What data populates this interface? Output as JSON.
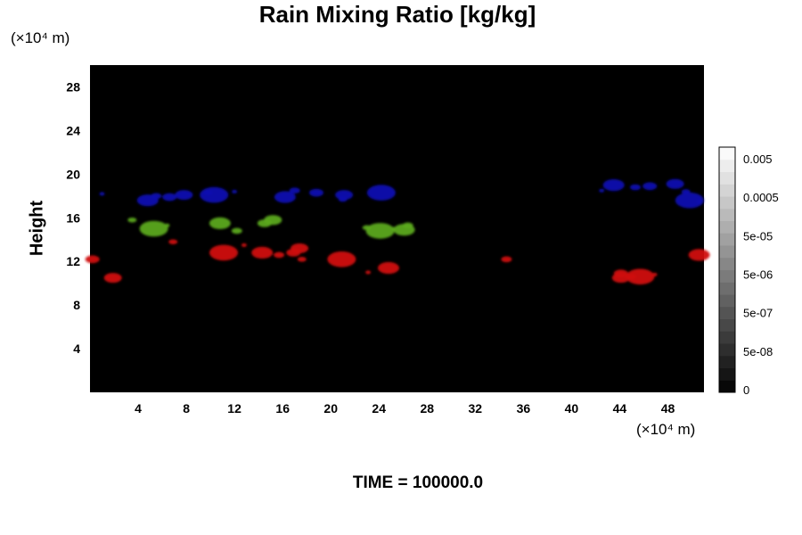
{
  "chart_data": {
    "type": "heatmap",
    "title": "Rain Mixing Ratio [kg/kg]",
    "ylabel": "Height",
    "xlabel": "",
    "x_unit": "(×10⁴ m)",
    "y_unit": "(×10⁴ m)",
    "x_ticks": [
      4,
      8,
      12,
      16,
      20,
      24,
      28,
      32,
      36,
      40,
      44,
      48
    ],
    "y_ticks": [
      4,
      8,
      12,
      16,
      20,
      24,
      28
    ],
    "xlim": [
      0,
      51
    ],
    "ylim": [
      0,
      30
    ],
    "colorbar": {
      "labels": [
        "0.005",
        "0.0005",
        "5e-05",
        "5e-06",
        "5e-07",
        "5e-08",
        "0"
      ],
      "levels": 20,
      "colors": [
        "#000000",
        "#ffffff"
      ]
    },
    "background_color": "#000000",
    "features": [
      {
        "color": "#0a10b0",
        "points": [
          [
            1,
            18.2
          ],
          [
            4.8,
            17.6
          ],
          [
            5.5,
            18
          ],
          [
            6.6,
            17.9
          ],
          [
            7.8,
            18.1
          ],
          [
            9.8,
            18.3
          ],
          [
            10.3,
            18.1
          ],
          [
            12,
            18.4
          ],
          [
            16.2,
            17.9
          ],
          [
            17,
            18.5
          ],
          [
            18.8,
            18.3
          ],
          [
            21.1,
            18.1
          ],
          [
            21,
            17.7
          ],
          [
            24.2,
            18.3
          ],
          [
            42.5,
            18.5
          ],
          [
            43.5,
            19
          ],
          [
            45.3,
            18.8
          ],
          [
            46.5,
            18.9
          ],
          [
            48.6,
            19.1
          ],
          [
            49.5,
            18.4
          ],
          [
            49.8,
            17.6
          ],
          [
            50.6,
            17.5
          ]
        ]
      },
      {
        "color": "#5ba81c",
        "points": [
          [
            3.5,
            15.8
          ],
          [
            5.3,
            15
          ],
          [
            6.4,
            15.3
          ],
          [
            10.8,
            15.5
          ],
          [
            12.2,
            14.8
          ],
          [
            14.5,
            15.5
          ],
          [
            15.2,
            15.8
          ],
          [
            23,
            15.1
          ],
          [
            24.1,
            14.8
          ],
          [
            25.2,
            15
          ],
          [
            26.1,
            14.9
          ],
          [
            26.4,
            15.3
          ]
        ]
      },
      {
        "color": "#d01010",
        "points": [
          [
            0.2,
            12.2
          ],
          [
            1.9,
            10.5
          ],
          [
            6.9,
            13.8
          ],
          [
            11.1,
            12.8
          ],
          [
            12.8,
            13.5
          ],
          [
            14.3,
            12.8
          ],
          [
            15.7,
            12.6
          ],
          [
            16.9,
            12.8
          ],
          [
            17.4,
            13.2
          ],
          [
            17.6,
            12.2
          ],
          [
            20.9,
            12.2
          ],
          [
            23.1,
            11
          ],
          [
            24.8,
            11.4
          ],
          [
            34.6,
            12.2
          ],
          [
            44.1,
            10.9
          ],
          [
            44.1,
            10.5
          ],
          [
            45,
            10.6
          ],
          [
            45.7,
            10.6
          ],
          [
            46.9,
            10.8
          ],
          [
            50.6,
            12.6
          ]
        ]
      }
    ]
  },
  "time_label": "TIME = 100000.0"
}
